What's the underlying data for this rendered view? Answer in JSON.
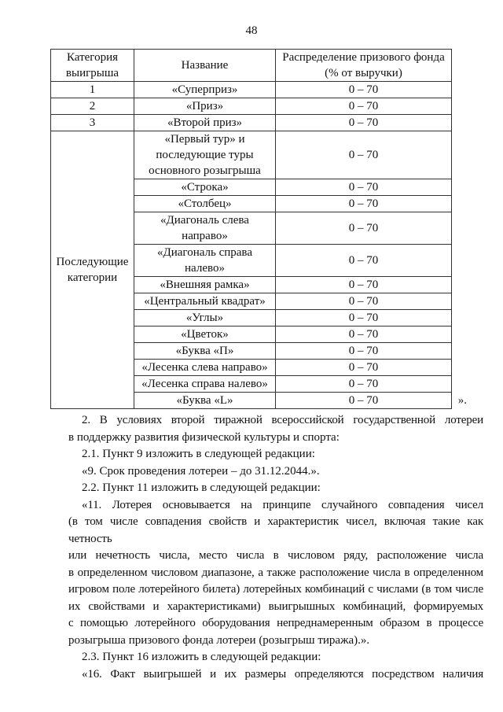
{
  "page_number": "48",
  "table": {
    "headers": [
      "Категория выигрыша",
      "Название",
      "Распределение призового фонда (% от выручки)"
    ],
    "header_lines": [
      [
        "Категория",
        "выигрыша"
      ],
      [
        "Название"
      ],
      [
        "Распределение призового фонда",
        "(% от выручки)"
      ]
    ],
    "group_label_lines": [
      "Последующие",
      "категории"
    ],
    "rows": [
      {
        "cat": "1",
        "name": [
          "«Суперприз»"
        ],
        "dist": "0 – 70"
      },
      {
        "cat": "2",
        "name": [
          "«Приз»"
        ],
        "dist": "0 – 70"
      },
      {
        "cat": "3",
        "name": [
          "«Второй приз»"
        ],
        "dist": "0 – 70"
      },
      {
        "cat": "",
        "name": [
          "«Первый тур» и",
          "последующие туры",
          "основного розыгрыша"
        ],
        "dist": "0 – 70"
      },
      {
        "cat": "",
        "name": [
          "«Строка»"
        ],
        "dist": "0 – 70"
      },
      {
        "cat": "",
        "name": [
          "«Столбец»"
        ],
        "dist": "0 – 70"
      },
      {
        "cat": "",
        "name": [
          "«Диагональ слева",
          "направо»"
        ],
        "dist": "0 – 70"
      },
      {
        "cat": "",
        "name": [
          "«Диагональ справа",
          "налево»"
        ],
        "dist": "0 – 70"
      },
      {
        "cat": "",
        "name": [
          "«Внешняя рамка»"
        ],
        "dist": "0 – 70"
      },
      {
        "cat": "",
        "name": [
          "«Центральный квадрат»"
        ],
        "dist": "0 – 70"
      },
      {
        "cat": "",
        "name": [
          "«Углы»"
        ],
        "dist": "0 – 70"
      },
      {
        "cat": "",
        "name": [
          "«Цветок»"
        ],
        "dist": "0 – 70"
      },
      {
        "cat": "",
        "name": [
          "«Буква «П»"
        ],
        "dist": "0 – 70"
      },
      {
        "cat": "",
        "name": [
          "«Лесенка слева направо»"
        ],
        "dist": "0 – 70"
      },
      {
        "cat": "",
        "name": [
          "«Лесенка справа налево»"
        ],
        "dist": "0 – 70"
      },
      {
        "cat": "",
        "name": [
          "«Буква «L»"
        ],
        "dist": "0 – 70"
      }
    ],
    "closing_mark": "»."
  },
  "body_lines": [
    {
      "text": "2.      В условиях второй тиражной всероссийской государственной лотереи",
      "indent": true,
      "justify": true
    },
    {
      "text": "в поддержку развития физической культуры и спорта:",
      "indent": false,
      "justify": false
    },
    {
      "text": "2.1. Пункт 9 изложить в следующей редакции:",
      "indent": true,
      "justify": false
    },
    {
      "text": "«9. Срок проведения лотереи – до 31.12.2044.».",
      "indent": true,
      "justify": false
    },
    {
      "text": "2.2. Пункт 11 изложить в следующей редакции:",
      "indent": true,
      "justify": false
    },
    {
      "text": "«11. Лотерея основывается на принципе случайного совпадения чисел",
      "indent": true,
      "justify": true
    },
    {
      "text": "(в том числе совпадения свойств и характеристик чисел, включая такие как четность",
      "indent": false,
      "justify": true
    },
    {
      "text": "или нечетность числа, место числа в числовом ряду, расположение числа",
      "indent": false,
      "justify": true
    },
    {
      "text": "в определенном числовом диапазоне, а также расположение числа в определенном",
      "indent": false,
      "justify": true
    },
    {
      "text": "игровом поле лотерейного билета) лотерейных комбинаций с числами (в том числе",
      "indent": false,
      "justify": true
    },
    {
      "text": "их свойствами и характеристиками) выигрышных комбинаций, формируемых",
      "indent": false,
      "justify": true
    },
    {
      "text": "с помощью лотерейного оборудования непреднамеренным образом в процессе",
      "indent": false,
      "justify": true
    },
    {
      "text": "розыгрыша призового фонда лотереи (розыгрыш тиража).».",
      "indent": false,
      "justify": false
    },
    {
      "text": "2.3. Пункт 16 изложить в следующей редакции:",
      "indent": true,
      "justify": false
    },
    {
      "text": "«16. Факт выигрышей и их размеры определяются посредством наличия",
      "indent": true,
      "justify": true
    }
  ]
}
